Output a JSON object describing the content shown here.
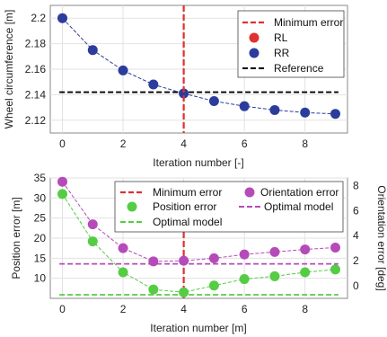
{
  "chart_data": [
    {
      "type": "scatter",
      "xlabel": "Iteration number [-]",
      "ylabel": "Wheel circumference [m]",
      "xlim": [
        -0.4,
        9.4
      ],
      "ylim": [
        2.11,
        2.21
      ],
      "xticks": [
        "0",
        "2",
        "4",
        "6",
        "8"
      ],
      "yticks": [
        "2.12",
        "2.14",
        "2.16",
        "2.18",
        "2.2"
      ],
      "grid": true,
      "legend_position": "top-right",
      "legend": [
        "Minimum error",
        "RL",
        "RR",
        "Reference"
      ],
      "series": [
        {
          "name": "RL",
          "color": "#e03030",
          "x": [],
          "y": []
        },
        {
          "name": "RR",
          "color": "#2b3c9c",
          "x": [
            0,
            1,
            2,
            3,
            4,
            5,
            6,
            7,
            8,
            9
          ],
          "y": [
            2.2,
            2.175,
            2.159,
            2.148,
            2.141,
            2.135,
            2.131,
            2.128,
            2.126,
            2.125
          ]
        }
      ],
      "reference": {
        "name": "Reference",
        "y": 2.142,
        "color": "#000000"
      },
      "minimum_error": {
        "name": "Minimum error",
        "x": 4,
        "color": "#e03030"
      }
    },
    {
      "type": "scatter",
      "xlabel": "Iteration number [m]",
      "ylabel": "Position error [m]",
      "ylabel_right": "Orientation error [deg]",
      "xlim": [
        -0.4,
        9.4
      ],
      "ylim": [
        5,
        35
      ],
      "ylim_right": [
        -1,
        8.6
      ],
      "xticks": [
        "0",
        "2",
        "4",
        "6",
        "8"
      ],
      "yticks": [
        "10",
        "15",
        "20",
        "25",
        "30",
        "35"
      ],
      "yticks_right": [
        "0",
        "2",
        "4",
        "6",
        "8"
      ],
      "grid": true,
      "legend_position": "top",
      "legend": [
        "Minimum error",
        "Orientation error",
        "Position error",
        "Optimal model",
        "Optimal model"
      ],
      "series": [
        {
          "name": "Position error",
          "axis": "left",
          "color": "#55cc44",
          "x": [
            0,
            1,
            2,
            3,
            4,
            5,
            6,
            7,
            8,
            9
          ],
          "y": [
            31,
            19.2,
            11.5,
            7.2,
            6.5,
            8.2,
            9.8,
            10.5,
            11.5,
            12.2
          ]
        },
        {
          "name": "Orientation error",
          "axis": "right",
          "color": "#b54bb8",
          "x": [
            0,
            1,
            2,
            3,
            4,
            5,
            6,
            7,
            8,
            9
          ],
          "y": [
            8.3,
            4.9,
            3.0,
            1.95,
            2.0,
            2.2,
            2.5,
            2.7,
            2.9,
            3.05
          ]
        }
      ],
      "optimal_model_position": {
        "name": "Optimal model",
        "y": 5.9,
        "color": "#55cc44"
      },
      "optimal_model_orientation": {
        "name": "Optimal model",
        "y": 1.75,
        "color": "#b54bb8"
      },
      "minimum_error": {
        "name": "Minimum error",
        "x": 4,
        "color": "#e03030"
      }
    }
  ]
}
